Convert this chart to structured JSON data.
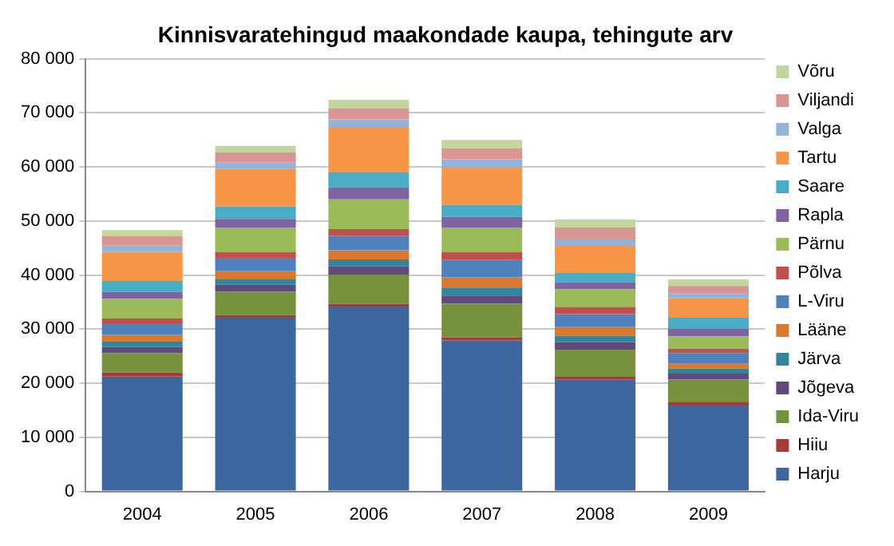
{
  "chart_data": {
    "type": "bar",
    "stacked": true,
    "title": "Kinnisvaratehingud maakondade kaupa, tehingute arv",
    "categories": [
      "2004",
      "2005",
      "2006",
      "2007",
      "2008",
      "2009"
    ],
    "series": [
      {
        "name": "Harju",
        "color": "#3f679f",
        "values": [
          21300,
          32100,
          34200,
          27900,
          20700,
          15900
        ]
      },
      {
        "name": "Hiiu",
        "color": "#a83a38",
        "values": [
          700,
          500,
          500,
          600,
          500,
          700
        ]
      },
      {
        "name": "Ida-Viru",
        "color": "#76923c",
        "values": [
          3600,
          4300,
          5400,
          6200,
          5000,
          4100
        ]
      },
      {
        "name": "Jõgeva",
        "color": "#604a7b",
        "values": [
          1100,
          1300,
          1500,
          1500,
          1400,
          1100
        ]
      },
      {
        "name": "Järva",
        "color": "#31859c",
        "values": [
          1100,
          1000,
          1300,
          1500,
          1200,
          900
        ]
      },
      {
        "name": "Lääne",
        "color": "#d9782f",
        "values": [
          1200,
          1500,
          1700,
          1900,
          1600,
          900
        ]
      },
      {
        "name": "L-Viru",
        "color": "#4f81bd",
        "values": [
          2100,
          2500,
          2700,
          3200,
          2400,
          2000
        ]
      },
      {
        "name": "Põlva",
        "color": "#c0504d",
        "values": [
          900,
          1100,
          1200,
          1500,
          1300,
          800
        ]
      },
      {
        "name": "Pärnu",
        "color": "#9bbb59",
        "values": [
          3600,
          4500,
          5500,
          4500,
          3300,
          2300
        ]
      },
      {
        "name": "Rapla",
        "color": "#8064a2",
        "values": [
          1300,
          1600,
          2200,
          2000,
          1300,
          1400
        ]
      },
      {
        "name": "Saare",
        "color": "#4bacc6",
        "values": [
          2000,
          2300,
          2900,
          2200,
          1800,
          2000
        ]
      },
      {
        "name": "Tartu",
        "color": "#f79646",
        "values": [
          5400,
          6900,
          8300,
          7000,
          4900,
          3600
        ]
      },
      {
        "name": "Valga",
        "color": "#95b3d7",
        "values": [
          1200,
          1200,
          1400,
          1400,
          1200,
          900
        ]
      },
      {
        "name": "Viljandi",
        "color": "#d99694",
        "values": [
          1700,
          1900,
          2000,
          2100,
          2200,
          1400
        ]
      },
      {
        "name": "Võru",
        "color": "#c3d69b",
        "values": [
          1100,
          1200,
          1600,
          1500,
          1500,
          1200
        ]
      }
    ],
    "ylim": [
      0,
      80000
    ],
    "yticks": [
      0,
      {
        "value": 10000,
        "label": "10 000"
      },
      {
        "value": 20000,
        "label": "20 000"
      },
      {
        "value": 30000,
        "label": "30 000"
      },
      {
        "value": 40000,
        "label": "40 000"
      },
      {
        "value": 50000,
        "label": "50 000"
      },
      {
        "value": 60000,
        "label": "60 000"
      },
      {
        "value": 70000,
        "label": "70 000"
      },
      {
        "value": 80000,
        "label": "80 000"
      }
    ],
    "grid": "y",
    "legend": "right"
  }
}
